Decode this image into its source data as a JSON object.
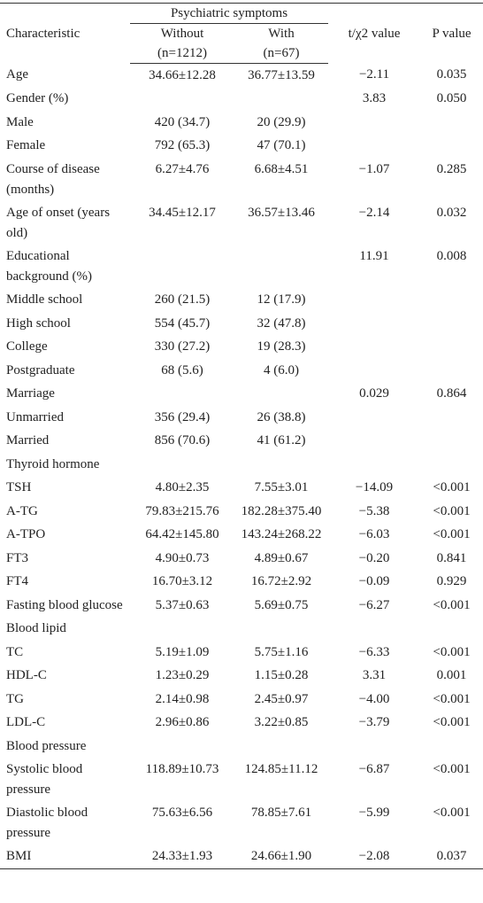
{
  "header": {
    "characteristic": "Characteristic",
    "group": "Psychiatric symptoms",
    "without": "Without",
    "without_n": "(n=1212)",
    "with": "With",
    "with_n": "(n=67)",
    "statistic": "t/χ2 value",
    "p": "P value"
  },
  "rows": [
    [
      "Age",
      "34.66±12.28",
      "36.77±13.59",
      "−2.11",
      "0.035"
    ],
    [
      "Gender (%)",
      null,
      null,
      "3.83",
      "0.050"
    ],
    [
      "Male",
      "420 (34.7)",
      "20 (29.9)",
      null,
      null
    ],
    [
      "Female",
      "792 (65.3)",
      "47 (70.1)",
      null,
      null
    ],
    [
      "Course of disease (months)",
      "6.27±4.76",
      "6.68±4.51",
      "−1.07",
      "0.285"
    ],
    [
      "Age of onset (years old)",
      "34.45±12.17",
      "36.57±13.46",
      "−2.14",
      "0.032"
    ],
    [
      "Educational background (%)",
      null,
      null,
      "11.91",
      "0.008"
    ],
    [
      "Middle school",
      "260 (21.5)",
      "12 (17.9)",
      null,
      null
    ],
    [
      "High school",
      "554 (45.7)",
      "32 (47.8)",
      null,
      null
    ],
    [
      "College",
      "330 (27.2)",
      "19 (28.3)",
      null,
      null
    ],
    [
      "Postgraduate",
      "68 (5.6)",
      "4 (6.0)",
      null,
      null
    ],
    [
      "Marriage",
      null,
      null,
      "0.029",
      "0.864"
    ],
    [
      "Unmarried",
      "356 (29.4)",
      "26 (38.8)",
      null,
      null
    ],
    [
      "Married",
      "856 (70.6)",
      "41 (61.2)",
      null,
      null
    ],
    [
      "Thyroid hormone",
      null,
      null,
      null,
      null
    ],
    [
      "TSH",
      "4.80±2.35",
      "7.55±3.01",
      "−14.09",
      "<0.001"
    ],
    [
      "A-TG",
      "79.83±215.76",
      "182.28±375.40",
      "−5.38",
      "<0.001"
    ],
    [
      "A-TPO",
      "64.42±145.80",
      "143.24±268.22",
      "−6.03",
      "<0.001"
    ],
    [
      "FT3",
      "4.90±0.73",
      "4.89±0.67",
      "−0.20",
      "0.841"
    ],
    [
      "FT4",
      "16.70±3.12",
      "16.72±2.92",
      "−0.09",
      "0.929"
    ],
    [
      "Fasting blood glucose",
      "5.37±0.63",
      "5.69±0.75",
      "−6.27",
      "<0.001"
    ],
    [
      "Blood lipid",
      null,
      null,
      null,
      null
    ],
    [
      "TC",
      "5.19±1.09",
      "5.75±1.16",
      "−6.33",
      "<0.001"
    ],
    [
      "HDL-C",
      "1.23±0.29",
      "1.15±0.28",
      "3.31",
      "0.001"
    ],
    [
      "TG",
      "2.14±0.98",
      "2.45±0.97",
      "−4.00",
      "<0.001"
    ],
    [
      "LDL-C",
      "2.96±0.86",
      "3.22±0.85",
      "−3.79",
      "<0.001"
    ],
    [
      "Blood pressure",
      null,
      null,
      null,
      null
    ],
    [
      "Systolic blood pressure",
      "118.89±10.73",
      "124.85±11.12",
      "−6.87",
      "<0.001"
    ],
    [
      "Diastolic blood pressure",
      "75.63±6.56",
      "78.85±7.61",
      "−5.99",
      "<0.001"
    ],
    [
      "BMI",
      "24.33±1.93",
      "24.66±1.90",
      "−2.08",
      "0.037"
    ]
  ]
}
